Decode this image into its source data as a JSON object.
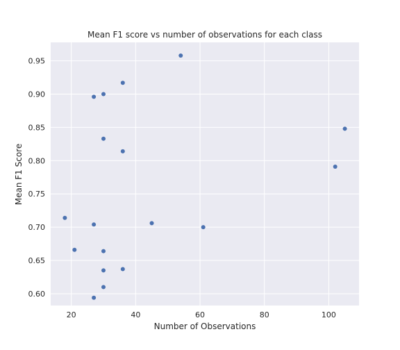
{
  "chart_data": {
    "type": "scatter",
    "title": "Mean F1 score vs number of observations for each class",
    "xlabel": "Number of Observations",
    "ylabel": "Mean F1 Score",
    "xlim": [
      13.6,
      109.4
    ],
    "ylim": [
      0.5822,
      0.9778
    ],
    "xticks": [
      20,
      40,
      60,
      80,
      100
    ],
    "xtick_labels": [
      "20",
      "40",
      "60",
      "80",
      "100"
    ],
    "yticks": [
      0.6,
      0.65,
      0.7,
      0.75,
      0.8,
      0.85,
      0.9,
      0.95
    ],
    "ytick_labels": [
      "0.60",
      "0.65",
      "0.70",
      "0.75",
      "0.80",
      "0.85",
      "0.90",
      "0.95"
    ],
    "grid": true,
    "colors": {
      "background": "#eaeaf2",
      "grid": "#ffffff",
      "point": "#4c72b0"
    },
    "points": [
      {
        "x": 54,
        "y": 0.958
      },
      {
        "x": 36,
        "y": 0.917
      },
      {
        "x": 30,
        "y": 0.9
      },
      {
        "x": 27,
        "y": 0.896
      },
      {
        "x": 105,
        "y": 0.848
      },
      {
        "x": 30,
        "y": 0.833
      },
      {
        "x": 36,
        "y": 0.814
      },
      {
        "x": 102,
        "y": 0.791
      },
      {
        "x": 18,
        "y": 0.714
      },
      {
        "x": 45,
        "y": 0.706
      },
      {
        "x": 27,
        "y": 0.704
      },
      {
        "x": 61,
        "y": 0.7
      },
      {
        "x": 21,
        "y": 0.666
      },
      {
        "x": 30,
        "y": 0.664
      },
      {
        "x": 36,
        "y": 0.637
      },
      {
        "x": 30,
        "y": 0.635
      },
      {
        "x": 30,
        "y": 0.61
      },
      {
        "x": 27,
        "y": 0.594
      }
    ]
  }
}
